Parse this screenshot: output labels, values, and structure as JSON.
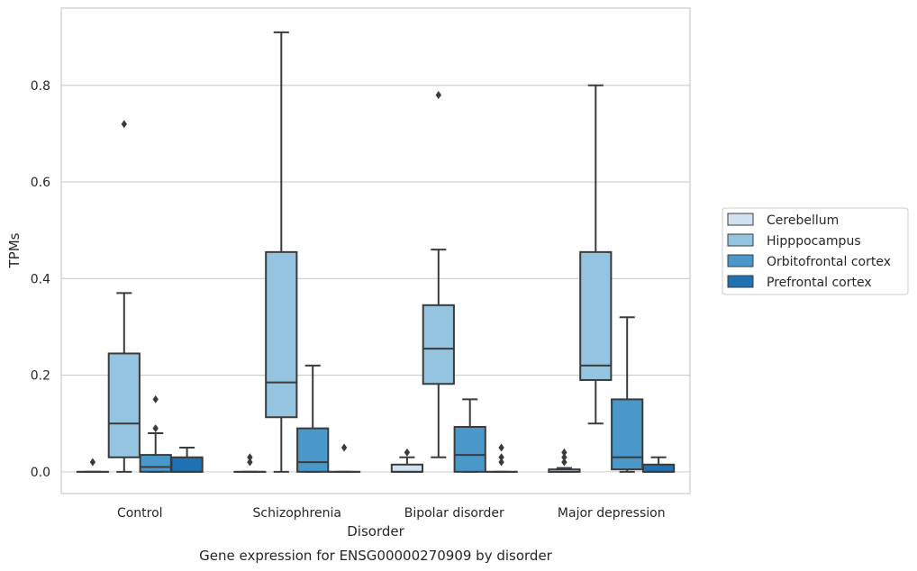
{
  "chart_data": {
    "type": "box",
    "caption": "Gene expression for ENSG00000270909 by disorder",
    "xlabel": "Disorder",
    "ylabel": "TPMs",
    "ylim": [
      -0.045,
      0.96
    ],
    "yticks": [
      "0.0",
      "0.2",
      "0.4",
      "0.6",
      "0.8"
    ],
    "grid": true,
    "legend_position": "right",
    "categories": [
      "Control",
      "Schizophrenia",
      "Bipolar disorder",
      "Major depression"
    ],
    "series": [
      {
        "name": "Cerebellum",
        "color": "#d0e1f2",
        "boxes": [
          {
            "q1": 0,
            "median": 0,
            "q3": 0,
            "whisker_low": 0,
            "whisker_high": 0,
            "outliers": [
              0.02
            ]
          },
          {
            "q1": 0,
            "median": 0,
            "q3": 0,
            "whisker_low": 0,
            "whisker_high": 0,
            "outliers": [
              0.02,
              0.03
            ]
          },
          {
            "q1": 0,
            "median": 0,
            "q3": 0.015,
            "whisker_low": 0,
            "whisker_high": 0.03,
            "outliers": [
              0.04
            ]
          },
          {
            "q1": 0,
            "median": 0,
            "q3": 0.005,
            "whisker_low": 0,
            "whisker_high": 0.008,
            "outliers": [
              0.02,
              0.03,
              0.04
            ]
          }
        ]
      },
      {
        "name": "Hipppocampus",
        "color": "#94c4df",
        "boxes": [
          {
            "q1": 0.03,
            "median": 0.1,
            "q3": 0.245,
            "whisker_low": 0,
            "whisker_high": 0.37,
            "outliers": [
              0.72
            ]
          },
          {
            "q1": 0.113,
            "median": 0.185,
            "q3": 0.455,
            "whisker_low": 0,
            "whisker_high": 0.91,
            "outliers": []
          },
          {
            "q1": 0.182,
            "median": 0.255,
            "q3": 0.345,
            "whisker_low": 0.03,
            "whisker_high": 0.46,
            "outliers": [
              0.78
            ]
          },
          {
            "q1": 0.19,
            "median": 0.22,
            "q3": 0.455,
            "whisker_low": 0.1,
            "whisker_high": 0.8,
            "outliers": []
          }
        ]
      },
      {
        "name": "Orbitofrontal cortex",
        "color": "#4a98c9",
        "boxes": [
          {
            "q1": 0,
            "median": 0.01,
            "q3": 0.035,
            "whisker_low": 0,
            "whisker_high": 0.08,
            "outliers": [
              0.09,
              0.15
            ]
          },
          {
            "q1": 0,
            "median": 0.02,
            "q3": 0.09,
            "whisker_low": 0,
            "whisker_high": 0.22,
            "outliers": []
          },
          {
            "q1": 0,
            "median": 0.035,
            "q3": 0.093,
            "whisker_low": 0,
            "whisker_high": 0.15,
            "outliers": []
          },
          {
            "q1": 0.005,
            "median": 0.03,
            "q3": 0.15,
            "whisker_low": 0,
            "whisker_high": 0.32,
            "outliers": []
          }
        ]
      },
      {
        "name": "Prefrontal cortex",
        "color": "#2070b4",
        "boxes": [
          {
            "q1": 0,
            "median": 0,
            "q3": 0.03,
            "whisker_low": 0,
            "whisker_high": 0.05,
            "outliers": []
          },
          {
            "q1": 0,
            "median": 0,
            "q3": 0,
            "whisker_low": 0,
            "whisker_high": 0,
            "outliers": [
              0.05
            ]
          },
          {
            "q1": 0,
            "median": 0,
            "q3": 0,
            "whisker_low": 0,
            "whisker_high": 0,
            "outliers": [
              0.02,
              0.03,
              0.05
            ]
          },
          {
            "q1": 0,
            "median": 0,
            "q3": 0.015,
            "whisker_low": 0,
            "whisker_high": 0.03,
            "outliers": []
          }
        ]
      }
    ]
  }
}
